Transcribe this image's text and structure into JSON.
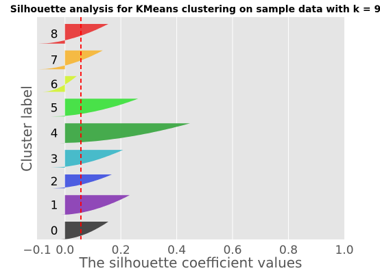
{
  "chart_data": {
    "type": "area",
    "title": "Silhouette analysis for KMeans clustering on sample data with k = 9",
    "xlabel": "The silhouette coefficient values",
    "ylabel": "Cluster label",
    "xlim": [
      -0.1,
      1.0
    ],
    "xticks": [
      {
        "value": -0.1,
        "label": "−0.1"
      },
      {
        "value": 0.0,
        "label": "0.0"
      },
      {
        "value": 0.2,
        "label": "0.2"
      },
      {
        "value": 0.4,
        "label": "0.4"
      },
      {
        "value": 0.6,
        "label": "0.6"
      },
      {
        "value": 0.8,
        "label": "0.8"
      },
      {
        "value": 1.0,
        "label": "1.0"
      }
    ],
    "grid": true,
    "average_silhouette": 0.057,
    "clusters": [
      {
        "label": "0",
        "color": "#404040",
        "min": -0.015,
        "max": 0.155,
        "size": 90
      },
      {
        "label": "1",
        "color": "#8b3fb5",
        "min": -0.015,
        "max": 0.232,
        "size": 100
      },
      {
        "label": "2",
        "color": "#4455e0",
        "min": -0.045,
        "max": 0.168,
        "size": 70
      },
      {
        "label": "3",
        "color": "#3fb8c8",
        "min": -0.05,
        "max": 0.208,
        "size": 90
      },
      {
        "label": "4",
        "color": "#3da844",
        "min": -0.02,
        "max": 0.448,
        "size": 100
      },
      {
        "label": "5",
        "color": "#40e040",
        "min": -0.05,
        "max": 0.262,
        "size": 90
      },
      {
        "label": "6",
        "color": "#d4f23a",
        "min": -0.08,
        "max": 0.042,
        "size": 80
      },
      {
        "label": "7",
        "color": "#f5b73b",
        "min": -0.095,
        "max": 0.135,
        "size": 95
      },
      {
        "label": "8",
        "color": "#e83a3a",
        "min": -0.095,
        "max": 0.155,
        "size": 100
      }
    ]
  }
}
